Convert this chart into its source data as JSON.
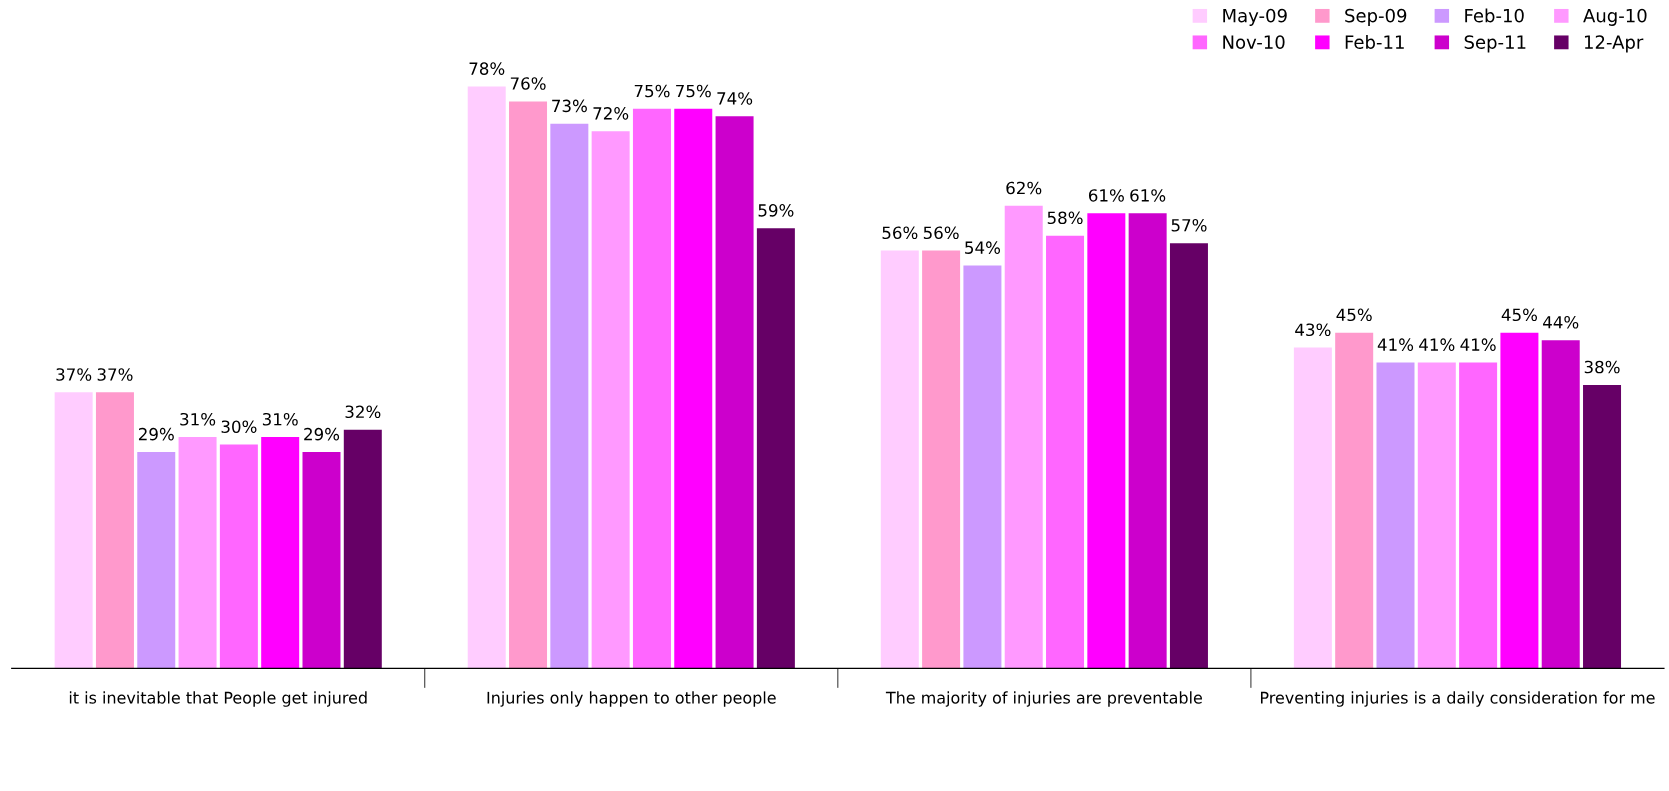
{
  "chart_data": {
    "type": "bar",
    "categories": [
      "it is inevitable that People get injured",
      "Injuries only happen to other people",
      "The majority of injuries are preventable",
      "Preventing injuries is a daily consideration for me"
    ],
    "series": [
      {
        "name": "May-09",
        "color": "#ffccff",
        "values": [
          37,
          78,
          56,
          43
        ],
        "value_labels": [
          "37%",
          "78%",
          "56%",
          "43%"
        ]
      },
      {
        "name": "Sep-09",
        "color": "#ff99cc",
        "values": [
          37,
          76,
          56,
          45
        ],
        "value_labels": [
          "37%",
          "76%",
          "56%",
          "45%"
        ]
      },
      {
        "name": "Feb-10",
        "color": "#cc99ff",
        "values": [
          29,
          73,
          54,
          41
        ],
        "value_labels": [
          "29%",
          "73%",
          "54%",
          "41%"
        ]
      },
      {
        "name": "Aug-10",
        "color": "#ff99ff",
        "values": [
          31,
          72,
          62,
          41
        ],
        "value_labels": [
          "31%",
          "72%",
          "62%",
          "41%"
        ]
      },
      {
        "name": "Nov-10",
        "color": "#ff66ff",
        "values": [
          30,
          75,
          58,
          41
        ],
        "value_labels": [
          "30%",
          "75%",
          "58%",
          "41%"
        ]
      },
      {
        "name": "Feb-11",
        "color": "#ff00ff",
        "values": [
          31,
          75,
          61,
          45
        ],
        "value_labels": [
          "31%",
          "75%",
          "61%",
          "45%"
        ]
      },
      {
        "name": "Sep-11",
        "color": "#cc00cc",
        "values": [
          29,
          74,
          61,
          44
        ],
        "value_labels": [
          "29%",
          "74%",
          "61%",
          "44%"
        ]
      },
      {
        "name": "12-Apr",
        "color": "#660066",
        "values": [
          32,
          59,
          57,
          38
        ],
        "value_labels": [
          "32%",
          "59%",
          "57%",
          "38%"
        ]
      }
    ],
    "ylim": [
      0,
      88
    ],
    "tick_labels": "x",
    "legend": "top right",
    "grid": false
  }
}
